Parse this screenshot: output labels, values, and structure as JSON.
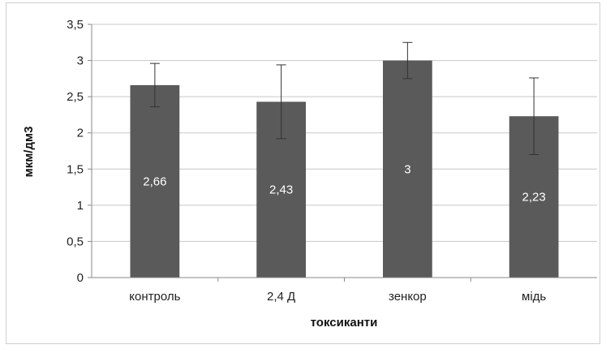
{
  "chart_data": {
    "type": "bar",
    "categories": [
      "контроль",
      "2,4 Д",
      "зенкор",
      "мідь"
    ],
    "values": [
      2.66,
      2.43,
      3,
      2.23
    ],
    "value_labels": [
      "2,66",
      "2,43",
      "3",
      "2,23"
    ],
    "errors": [
      0.3,
      0.51,
      0.25,
      0.53
    ],
    "ylim": [
      0,
      3.5
    ],
    "yticks": [
      0,
      0.5,
      1,
      1.5,
      2,
      2.5,
      3,
      3.5
    ],
    "ytick_labels": [
      "0",
      "0,5",
      "1",
      "1,5",
      "2",
      "2,5",
      "3",
      "3,5"
    ],
    "xlabel": "токсиканти",
    "ylabel": "мкм/дм3",
    "grid": true,
    "legend": false,
    "colors": {
      "bar": "#5a5a5a",
      "grid": "#c8c8c8",
      "axis": "#8a8a8a",
      "error": "#333333"
    }
  }
}
